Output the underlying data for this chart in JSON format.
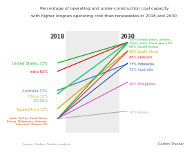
{
  "title_line1": "Percentage of operating and under-construction coal capacity",
  "title_line2": "with higher longrun operating cost than renewables in 2018 and 2030",
  "year_left": "2018",
  "year_right": "2030",
  "source": "Source: Carbon Tracker analysis",
  "lines": [
    {
      "x0": 0,
      "y0": 73,
      "x1": 1,
      "y1": 100,
      "color": "#22aa22",
      "lw": 1.0
    },
    {
      "x0": 0,
      "y0": 62,
      "x1": 1,
      "y1": 100,
      "color": "#dd2222",
      "lw": 1.0
    },
    {
      "x0": 0,
      "y0": 37,
      "x1": 1,
      "y1": 72,
      "color": "#4477cc",
      "lw": 1.0
    },
    {
      "x0": 0,
      "y0": 32,
      "x1": 1,
      "y1": 100,
      "color": "#99cc22",
      "lw": 1.0
    },
    {
      "x0": 0,
      "y0": 33,
      "x1": 1,
      "y1": 100,
      "color": "#22ccaa",
      "lw": 1.0
    },
    {
      "x0": 0,
      "y0": 13,
      "x1": 1,
      "y1": 89,
      "color": "#ccaa00",
      "lw": 1.0
    },
    {
      "x0": 0,
      "y0": 0,
      "x1": 1,
      "y1": 100,
      "color": "#cc4400",
      "lw": 0.8
    },
    {
      "x0": 0,
      "y0": 0,
      "x1": 1,
      "y1": 48,
      "color": "#cc44cc",
      "lw": 0.8
    },
    {
      "x0": 0,
      "y0": 0,
      "x1": 1,
      "y1": 10,
      "color": "#aaaaaa",
      "lw": 0.8
    },
    {
      "x0": 0,
      "y0": 0,
      "x1": 1,
      "y1": 88,
      "color": "#dd2222",
      "lw": 0.8
    },
    {
      "x0": 0,
      "y0": 0,
      "x1": 1,
      "y1": 73,
      "color": "#224488",
      "lw": 0.8
    },
    {
      "x0": 0,
      "y0": 0,
      "x1": 1,
      "y1": 99,
      "color": "#22cc55",
      "lw": 0.8
    }
  ],
  "labels_left": [
    {
      "text": "United States, 73%",
      "y": 73,
      "color": "#22aa22",
      "fs": 3.8
    },
    {
      "text": "India 62%",
      "y": 62,
      "color": "#dd2222",
      "fs": 3.8
    },
    {
      "text": "Australia 37%",
      "y": 37,
      "color": "#4477cc",
      "fs": 3.8
    },
    {
      "text": "China 32%",
      "y": 30,
      "color": "#99cc22",
      "fs": 3.8
    },
    {
      "text": "EU 33%",
      "y": 24,
      "color": "#22ccaa",
      "fs": 3.8
    },
    {
      "text": "South Africa 13%",
      "y": 13,
      "color": "#ccaa00",
      "fs": 3.8
    },
    {
      "text": "Japan, Turkey, South Korea,\nRussia, Philippines, Vietnam,\nIndonesia, Ukraine 0%",
      "y": -3,
      "color": "#cc4400",
      "fs": 3.0
    }
  ],
  "labels_right": [
    {
      "text": "100% United States, Ukraine,\nTurkey, India, China, Japan, EU",
      "y": 102,
      "color": "#22aa22",
      "fs": 3.0
    },
    {
      "text": "99% South Korea",
      "y": 95,
      "color": "#22cc55",
      "fs": 3.5
    },
    {
      "text": "89% South Africa",
      "y": 88,
      "color": "#ccaa00",
      "fs": 3.5
    },
    {
      "text": "88% Vietnam",
      "y": 81,
      "color": "#dd2222",
      "fs": 3.5
    },
    {
      "text": "73% Indonesia",
      "y": 72,
      "color": "#224488",
      "fs": 3.5
    },
    {
      "text": "72% Australia",
      "y": 65,
      "color": "#4477cc",
      "fs": 3.5
    },
    {
      "text": "48% Philippines",
      "y": 46,
      "color": "#cc44cc",
      "fs": 3.5
    },
    {
      "text": "10% Russia",
      "y": 9,
      "color": "#aaaaaa",
      "fs": 3.5
    }
  ],
  "xlim": [
    -0.52,
    1.85
  ],
  "ylim": [
    -18,
    115
  ],
  "span_x0": 0.12,
  "span_x1": 0.88
}
